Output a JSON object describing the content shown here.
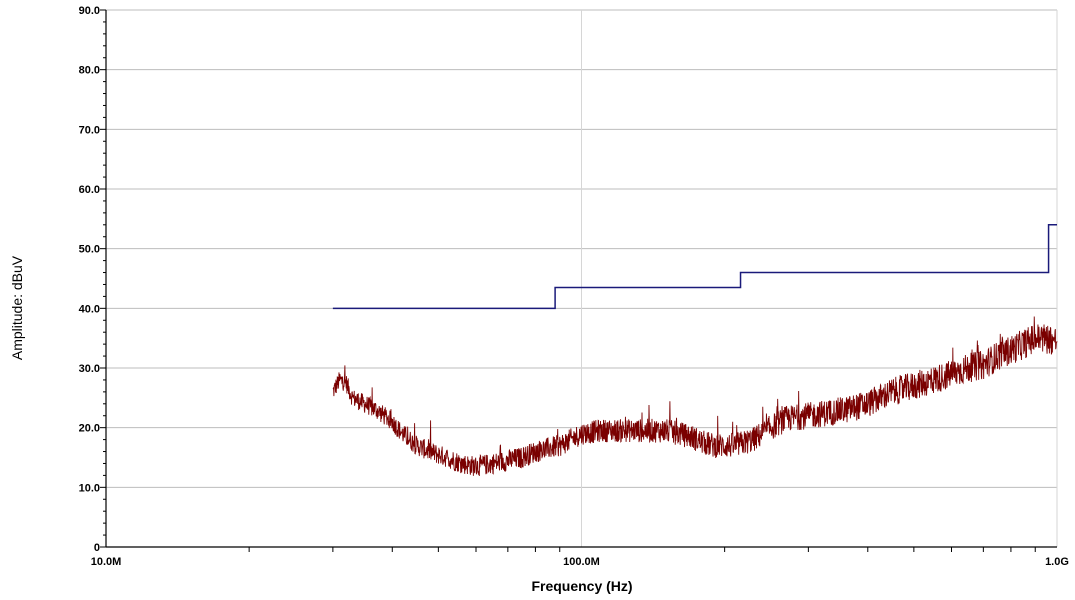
{
  "chart_data": {
    "type": "line",
    "xlabel": "Frequency (Hz)",
    "ylabel": "Amplitude: dBuV",
    "xscale": "log",
    "xlim": [
      10000000,
      1000000000
    ],
    "ylim": [
      0,
      90
    ],
    "grid": true,
    "x_ticks": [
      {
        "value": 10000000,
        "label": "10.0M"
      },
      {
        "value": 100000000,
        "label": "100.0M"
      },
      {
        "value": 1000000000,
        "label": "1.0G"
      }
    ],
    "y_ticks": [
      {
        "value": 0,
        "label": "0"
      },
      {
        "value": 10,
        "label": "10.0"
      },
      {
        "value": 20,
        "label": "20.0"
      },
      {
        "value": 30,
        "label": "30.0"
      },
      {
        "value": 40,
        "label": "40.0"
      },
      {
        "value": 50,
        "label": "50.0"
      },
      {
        "value": 60,
        "label": "60.0"
      },
      {
        "value": 70,
        "label": "70.0"
      },
      {
        "value": 80,
        "label": "80.0"
      },
      {
        "value": 90,
        "label": "90.0"
      }
    ],
    "series": [
      {
        "color": "#1a1a7a",
        "style": "step",
        "points": [
          [
            30000000,
            40
          ],
          [
            88000000,
            40
          ],
          [
            88000000,
            43.5
          ],
          [
            216000000,
            43.5
          ],
          [
            216000000,
            46
          ],
          [
            960000000,
            46
          ],
          [
            960000000,
            54
          ],
          [
            1000000000,
            54
          ]
        ]
      },
      {
        "color": "#7a0000",
        "style": "noisy",
        "points": [
          [
            30000000,
            26
          ],
          [
            31000000,
            28
          ],
          [
            32000000,
            27.5
          ],
          [
            33000000,
            25
          ],
          [
            35000000,
            24
          ],
          [
            37000000,
            23
          ],
          [
            40000000,
            21
          ],
          [
            42000000,
            19
          ],
          [
            45000000,
            17
          ],
          [
            48000000,
            16
          ],
          [
            52000000,
            15
          ],
          [
            56000000,
            14
          ],
          [
            60000000,
            13.5
          ],
          [
            65000000,
            14
          ],
          [
            70000000,
            14.5
          ],
          [
            75000000,
            15
          ],
          [
            80000000,
            16
          ],
          [
            85000000,
            16.5
          ],
          [
            90000000,
            17
          ],
          [
            95000000,
            18
          ],
          [
            100000000,
            19
          ],
          [
            110000000,
            19.5
          ],
          [
            120000000,
            19.5
          ],
          [
            130000000,
            19.5
          ],
          [
            140000000,
            19.5
          ],
          [
            150000000,
            19.5
          ],
          [
            160000000,
            19
          ],
          [
            170000000,
            18.5
          ],
          [
            180000000,
            17.5
          ],
          [
            190000000,
            17
          ],
          [
            200000000,
            17
          ],
          [
            210000000,
            17
          ],
          [
            220000000,
            17.5
          ],
          [
            230000000,
            18
          ],
          [
            250000000,
            20
          ],
          [
            270000000,
            21.5
          ],
          [
            300000000,
            22
          ],
          [
            330000000,
            22.5
          ],
          [
            360000000,
            23
          ],
          [
            400000000,
            24
          ],
          [
            450000000,
            26
          ],
          [
            500000000,
            27
          ],
          [
            550000000,
            28
          ],
          [
            600000000,
            29
          ],
          [
            650000000,
            30
          ],
          [
            700000000,
            30.5
          ],
          [
            750000000,
            32
          ],
          [
            800000000,
            33
          ],
          [
            850000000,
            34
          ],
          [
            900000000,
            35
          ],
          [
            950000000,
            35
          ],
          [
            1000000000,
            34.5
          ]
        ]
      }
    ]
  }
}
